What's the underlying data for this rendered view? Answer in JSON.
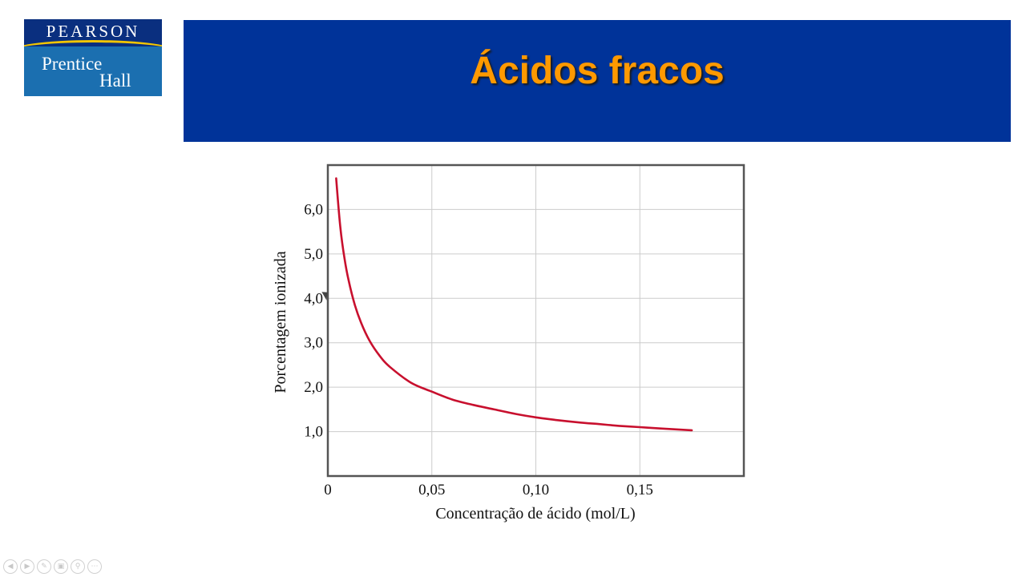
{
  "logo": {
    "brand": "PEARSON",
    "line1": "Prentice",
    "line2": "Hall"
  },
  "slide": {
    "title": "Ácidos fracos"
  },
  "nav_icons": [
    "prev-icon",
    "next-icon",
    "pen-icon",
    "slides-icon",
    "zoom-icon",
    "more-icon"
  ],
  "chart_data": {
    "type": "line",
    "xlabel": "Concentração de ácido (mol/L)",
    "ylabel": "Porcentagem ionizada",
    "xlim": [
      0,
      0.2
    ],
    "ylim": [
      0,
      7.0
    ],
    "xticks": [
      0,
      0.05,
      0.1,
      0.15
    ],
    "xtick_labels": [
      "0",
      "0,05",
      "0,10",
      "0,15"
    ],
    "yticks": [
      1.0,
      2.0,
      3.0,
      4.0,
      5.0,
      6.0
    ],
    "ytick_labels": [
      "1,0",
      "2,0",
      "3,0",
      "4,0",
      "5,0",
      "6,0"
    ],
    "grid": true,
    "series": [
      {
        "color": "#c8102e",
        "x": [
          0.004,
          0.006,
          0.008,
          0.01,
          0.013,
          0.016,
          0.02,
          0.025,
          0.03,
          0.04,
          0.05,
          0.06,
          0.07,
          0.08,
          0.09,
          0.1,
          0.11,
          0.12,
          0.13,
          0.14,
          0.15,
          0.16,
          0.175
        ],
        "y": [
          6.7,
          5.6,
          4.9,
          4.4,
          3.85,
          3.45,
          3.05,
          2.7,
          2.45,
          2.1,
          1.9,
          1.72,
          1.6,
          1.5,
          1.4,
          1.32,
          1.26,
          1.21,
          1.17,
          1.13,
          1.1,
          1.07,
          1.03
        ]
      }
    ]
  }
}
